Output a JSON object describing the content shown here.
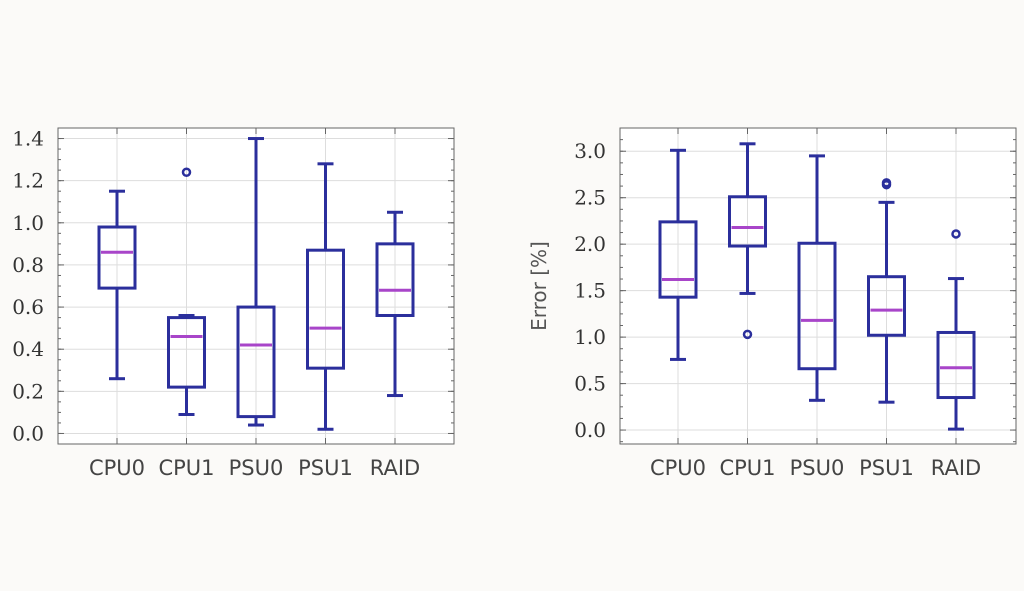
{
  "style": {
    "box_color": "#2b2f9c",
    "median_color": "#a845c9",
    "grid_color": "#dddddd",
    "frame_color": "#666666",
    "panel_bg": "#ffffff"
  },
  "chart_data": [
    {
      "type": "box",
      "title": "",
      "xlabel": "",
      "ylabel": "",
      "ylim": [
        -0.05,
        1.45
      ],
      "yticks": [
        "0.0",
        "0.2",
        "0.4",
        "0.6",
        "0.8",
        "1.0",
        "1.2",
        "1.4"
      ],
      "grid": true,
      "categories": [
        "CPU0",
        "CPU1",
        "PSU0",
        "PSU1",
        "RAID"
      ],
      "series": [
        {
          "name": "CPU0",
          "whisker_low": 0.26,
          "q1": 0.69,
          "median": 0.86,
          "q3": 0.98,
          "whisker_high": 1.15,
          "outliers": []
        },
        {
          "name": "CPU1",
          "whisker_low": 0.09,
          "q1": 0.22,
          "median": 0.46,
          "q3": 0.55,
          "whisker_high": 0.56,
          "outliers": [
            1.24
          ]
        },
        {
          "name": "PSU0",
          "whisker_low": 0.04,
          "q1": 0.08,
          "median": 0.42,
          "q3": 0.6,
          "whisker_high": 1.4,
          "outliers": []
        },
        {
          "name": "PSU1",
          "whisker_low": 0.02,
          "q1": 0.31,
          "median": 0.5,
          "q3": 0.87,
          "whisker_high": 1.28,
          "outliers": []
        },
        {
          "name": "RAID",
          "whisker_low": 0.18,
          "q1": 0.56,
          "median": 0.68,
          "q3": 0.9,
          "whisker_high": 1.05,
          "outliers": []
        }
      ]
    },
    {
      "type": "box",
      "title": "",
      "xlabel": "",
      "ylabel": "Error [%]",
      "ylim": [
        -0.15,
        3.25
      ],
      "yticks": [
        "0.0",
        "0.5",
        "1.0",
        "1.5",
        "2.0",
        "2.5",
        "3.0"
      ],
      "grid": true,
      "categories": [
        "CPU0",
        "CPU1",
        "PSU0",
        "PSU1",
        "RAID"
      ],
      "series": [
        {
          "name": "CPU0",
          "whisker_low": 0.76,
          "q1": 1.43,
          "median": 1.62,
          "q3": 2.24,
          "whisker_high": 3.01,
          "outliers": []
        },
        {
          "name": "CPU1",
          "whisker_low": 1.47,
          "q1": 1.98,
          "median": 2.18,
          "q3": 2.51,
          "whisker_high": 3.08,
          "outliers": [
            1.03
          ]
        },
        {
          "name": "PSU0",
          "whisker_low": 0.32,
          "q1": 0.66,
          "median": 1.18,
          "q3": 2.01,
          "whisker_high": 2.95,
          "outliers": []
        },
        {
          "name": "PSU1",
          "whisker_low": 0.3,
          "q1": 1.02,
          "median": 1.29,
          "q3": 1.65,
          "whisker_high": 2.45,
          "outliers": [
            2.64,
            2.66
          ]
        },
        {
          "name": "RAID",
          "whisker_low": 0.01,
          "q1": 0.35,
          "median": 0.67,
          "q3": 1.05,
          "whisker_high": 1.63,
          "outliers": [
            2.11
          ]
        }
      ]
    }
  ]
}
